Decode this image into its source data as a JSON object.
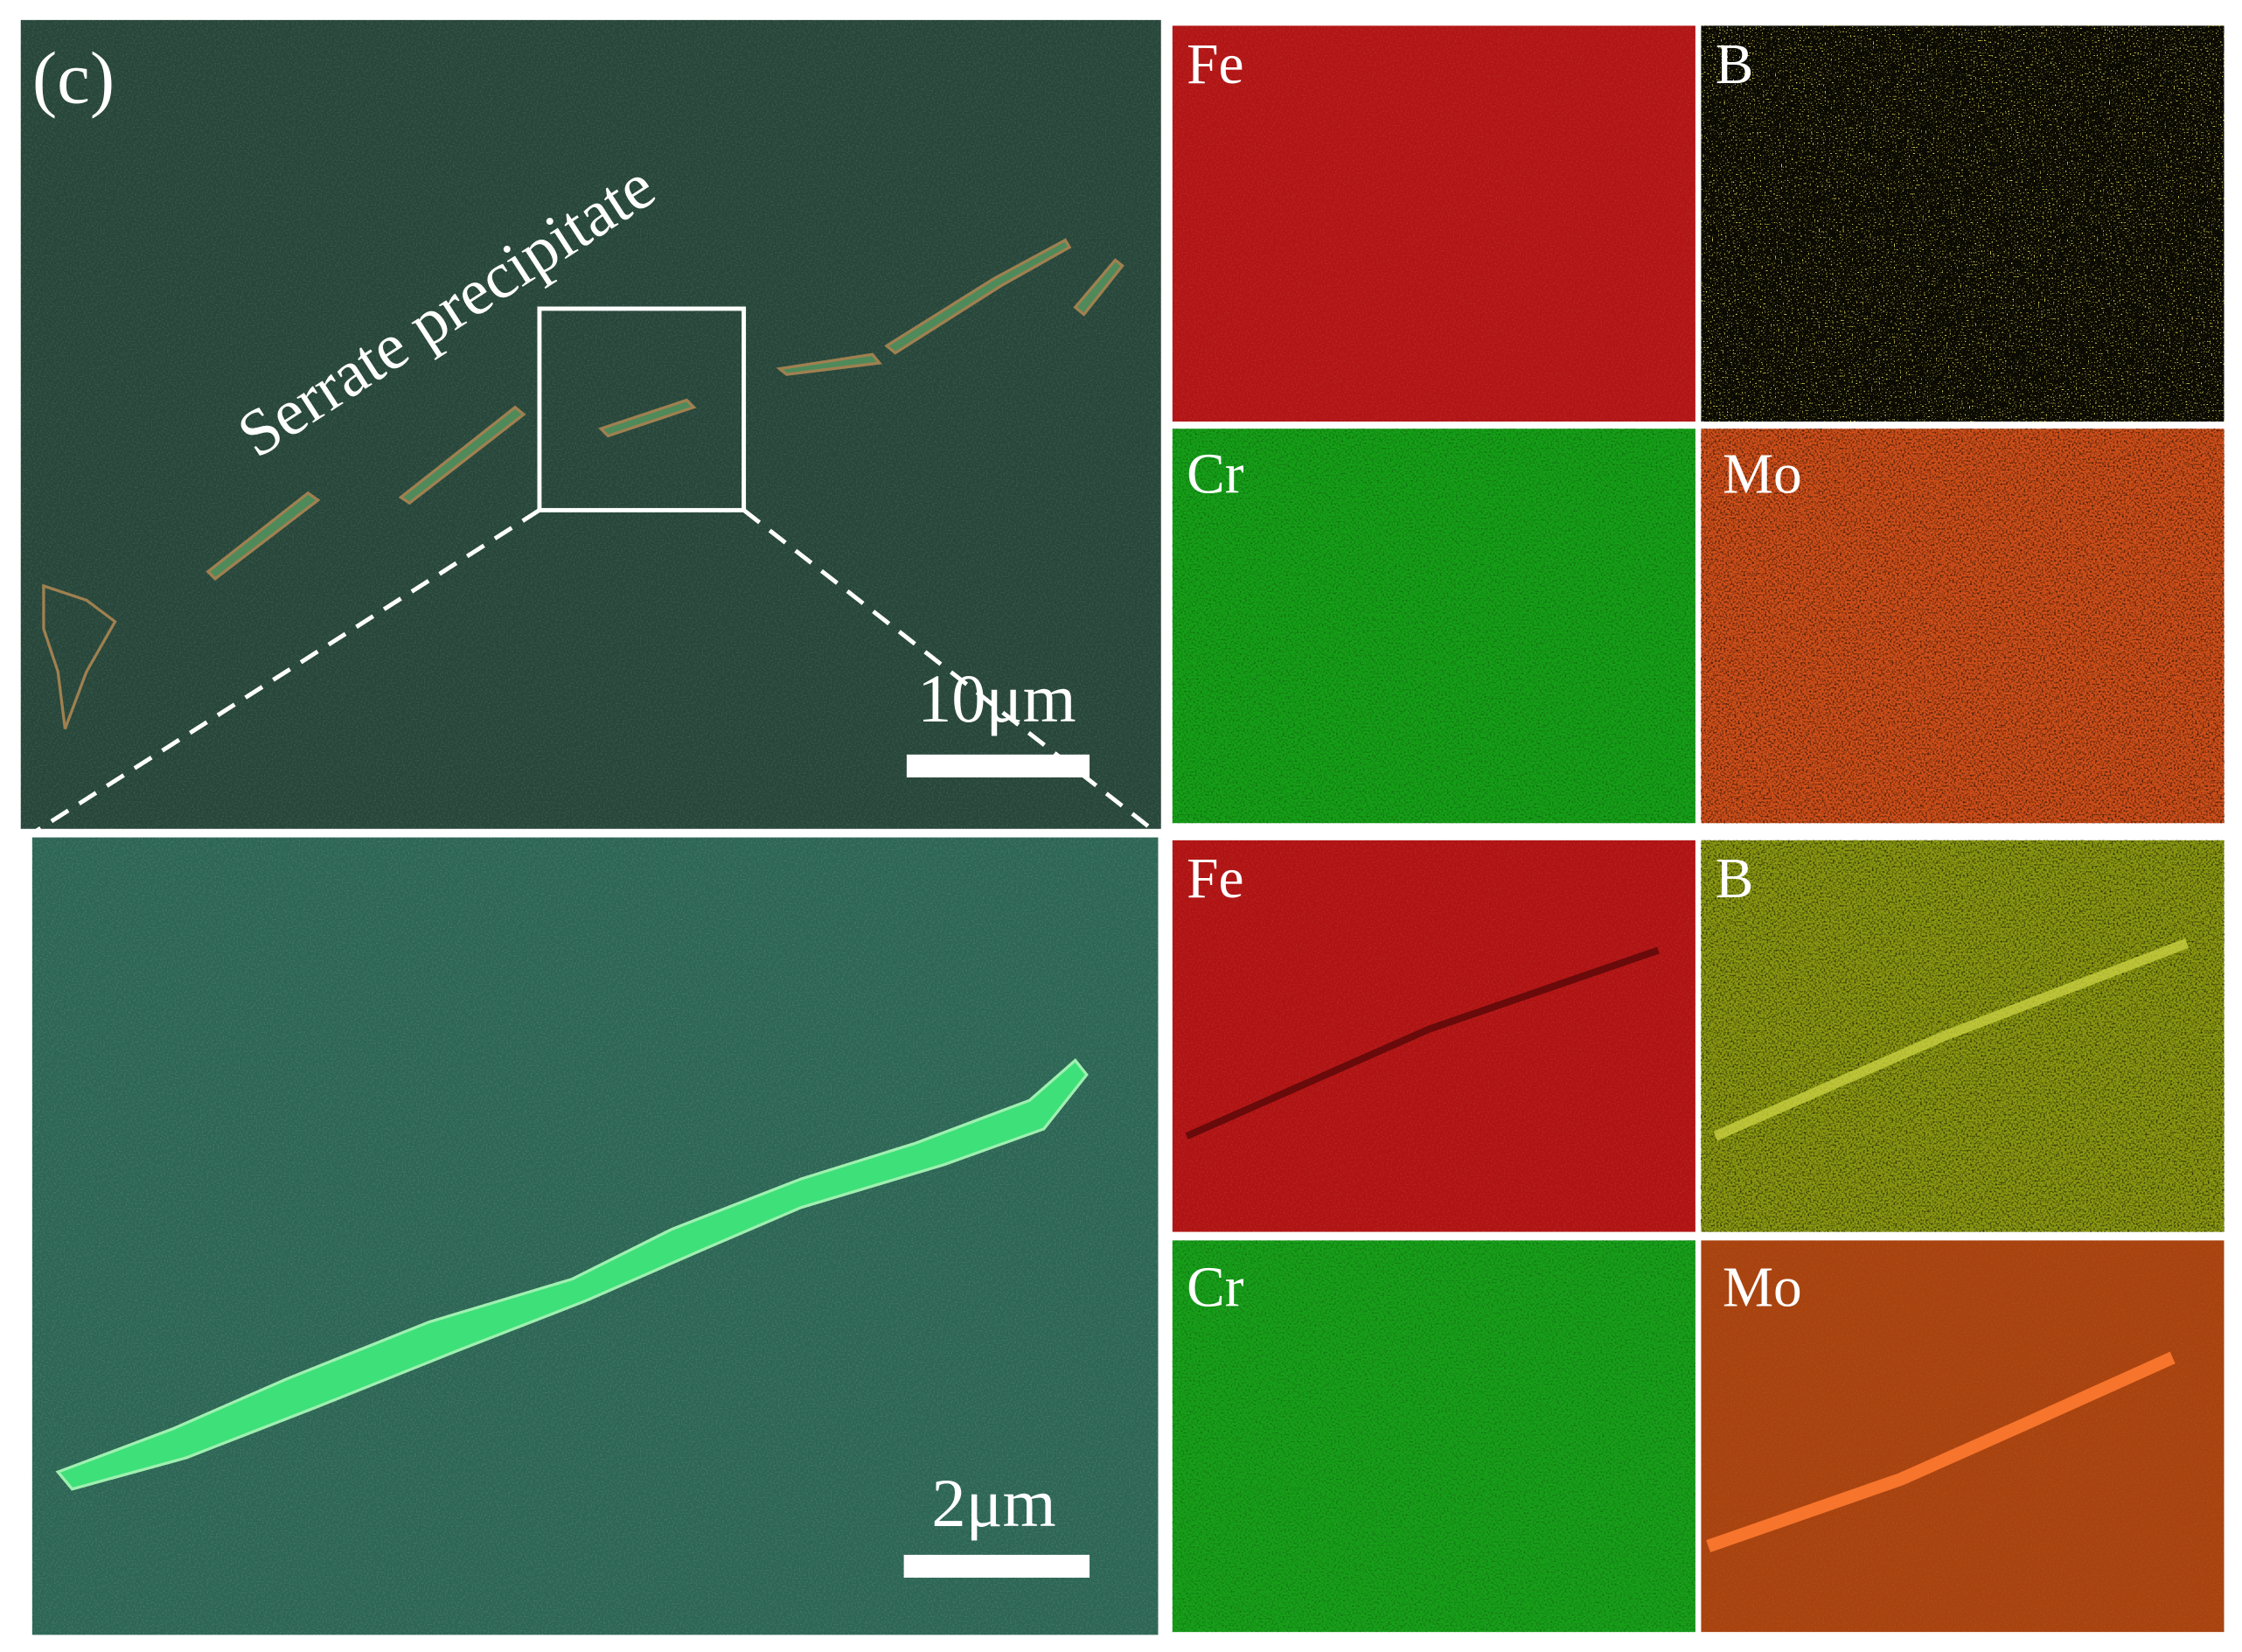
{
  "overview": {
    "panel_label": "(c)",
    "annotation": "Serrate precipitate",
    "scale_bar": "10μm"
  },
  "detail": {
    "scale_bar": "2μm"
  },
  "maps": {
    "top": [
      "Fe",
      "B",
      "Cr",
      "Mo"
    ],
    "bottom": [
      "Fe",
      "B",
      "Cr",
      "Mo"
    ]
  }
}
